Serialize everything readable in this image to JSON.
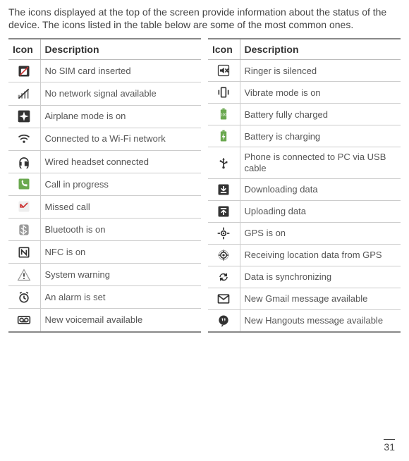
{
  "intro": "The icons displayed at the top of the screen provide information about the status of the device. The icons listed in the table below are some of the most common ones.",
  "header_icon": "Icon",
  "header_desc": "Description",
  "page_number": "31",
  "left": [
    {
      "icon": "no-sim",
      "desc": "No SIM card inserted"
    },
    {
      "icon": "no-signal",
      "desc": "No network signal available"
    },
    {
      "icon": "airplane",
      "desc": "Airplane mode is on"
    },
    {
      "icon": "wifi",
      "desc": "Connected to a Wi-Fi network"
    },
    {
      "icon": "headset",
      "desc": "Wired headset connected"
    },
    {
      "icon": "call",
      "desc": "Call in progress"
    },
    {
      "icon": "missed-call",
      "desc": "Missed call"
    },
    {
      "icon": "bluetooth",
      "desc": "Bluetooth is on"
    },
    {
      "icon": "nfc",
      "desc": "NFC is on"
    },
    {
      "icon": "warning",
      "desc": "System warning"
    },
    {
      "icon": "alarm",
      "desc": "An alarm is set"
    },
    {
      "icon": "voicemail",
      "desc": "New voicemail available"
    }
  ],
  "right": [
    {
      "icon": "ringer-silent",
      "desc": "Ringer is silenced"
    },
    {
      "icon": "vibrate",
      "desc": "Vibrate mode is on"
    },
    {
      "icon": "battery-full",
      "desc": "Battery fully charged"
    },
    {
      "icon": "battery-charge",
      "desc": "Battery is charging"
    },
    {
      "icon": "usb",
      "desc": "Phone is connected to PC via USB cable"
    },
    {
      "icon": "download",
      "desc": "Downloading data"
    },
    {
      "icon": "upload",
      "desc": "Uploading data"
    },
    {
      "icon": "gps",
      "desc": "GPS is on"
    },
    {
      "icon": "gps-recv",
      "desc": "Receiving location data from GPS"
    },
    {
      "icon": "sync",
      "desc": "Data is synchronizing"
    },
    {
      "icon": "gmail",
      "desc": "New Gmail message available"
    },
    {
      "icon": "hangouts",
      "desc": "New Hangouts message available"
    }
  ],
  "colors": {
    "dark": "#333333",
    "mid": "#888888",
    "green": "#6aa84f",
    "red": "#cc3333",
    "gray": "#999999"
  }
}
